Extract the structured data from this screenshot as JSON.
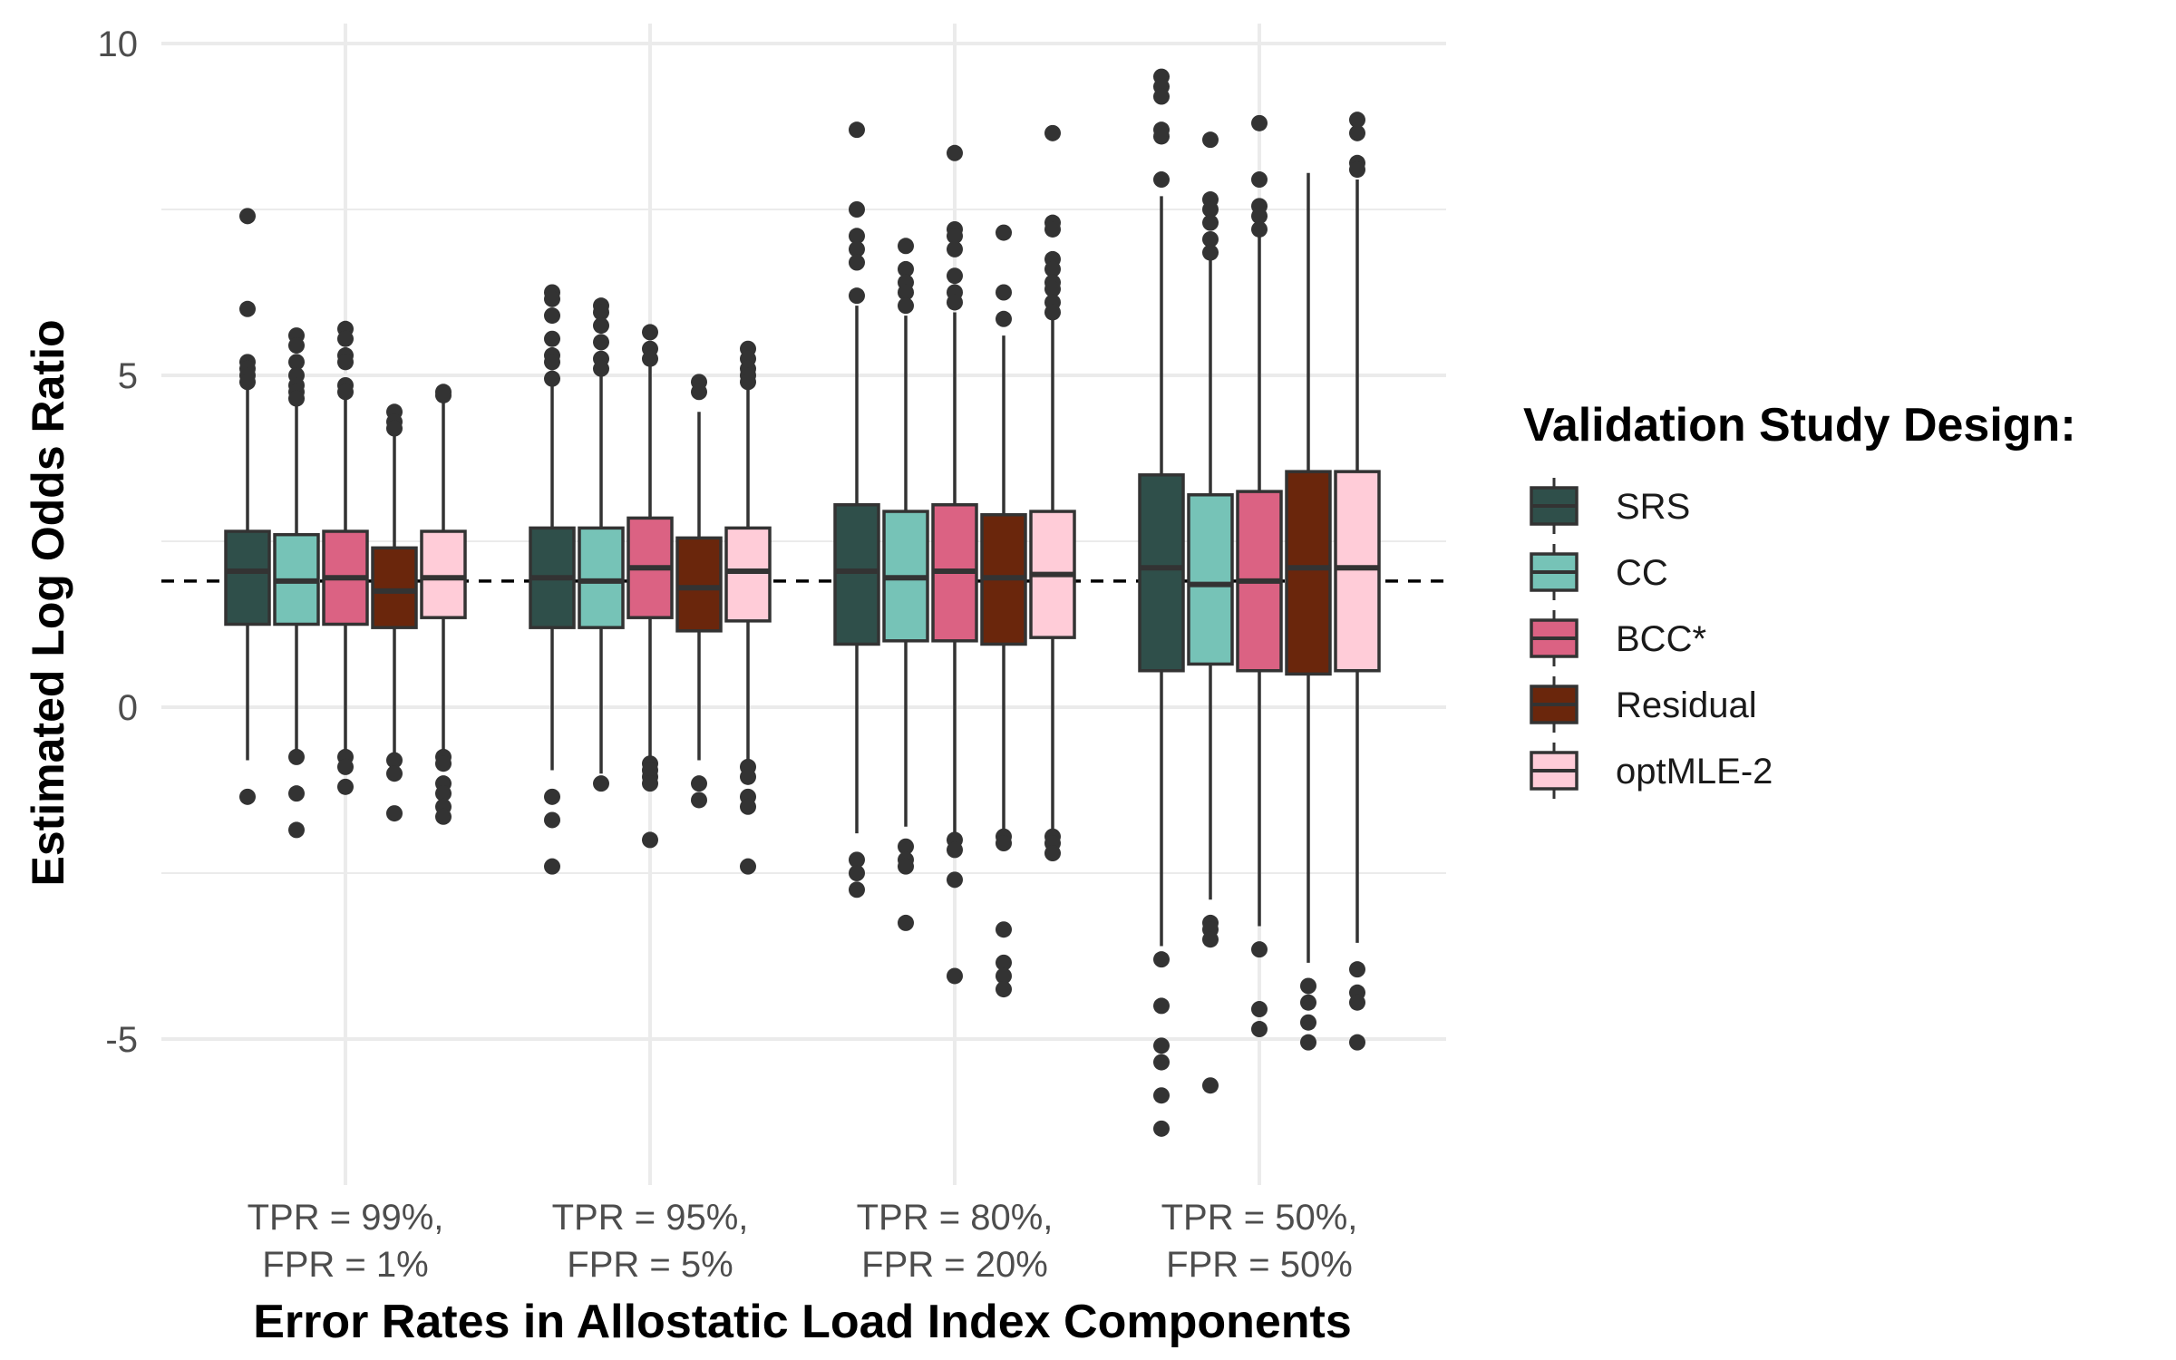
{
  "chart_data": {
    "type": "boxplot",
    "title": "",
    "xlabel": "Error Rates in Allostatic Load Index Components",
    "ylabel": "Estimated Log Odds Ratio",
    "ylim": [
      -7.2,
      10.3
    ],
    "yticks": [
      "10",
      "5",
      "0",
      "-5"
    ],
    "reference_line": 1.9,
    "grid": true,
    "legend_position": "right",
    "legend_title": "Validation Study Design:",
    "categories": [
      {
        "line1": "TPR = 99%,",
        "line2": "FPR = 1%"
      },
      {
        "line1": "TPR = 95%,",
        "line2": "FPR = 5%"
      },
      {
        "line1": "TPR = 80%,",
        "line2": "FPR = 20%"
      },
      {
        "line1": "TPR = 50%,",
        "line2": "FPR = 50%"
      }
    ],
    "series": [
      {
        "name": "SRS",
        "color": "#2f4f4a",
        "boxes": [
          {
            "lw": -0.8,
            "q1": 1.25,
            "med": 2.05,
            "q3": 2.65,
            "uw": 4.8,
            "out": [
              7.4,
              6.0,
              5.2,
              5.1,
              5.0,
              4.9,
              -1.35
            ]
          },
          {
            "lw": -0.95,
            "q1": 1.2,
            "med": 1.95,
            "q3": 2.7,
            "uw": 4.9,
            "out": [
              6.25,
              6.15,
              5.9,
              5.55,
              5.3,
              5.2,
              4.95,
              -1.35,
              -1.7,
              -2.4
            ]
          },
          {
            "lw": -1.9,
            "q1": 0.95,
            "med": 2.05,
            "q3": 3.05,
            "uw": 6.05,
            "out": [
              8.7,
              7.5,
              7.1,
              6.9,
              6.7,
              6.2,
              -2.3,
              -2.5,
              -2.75
            ]
          },
          {
            "lw": -3.6,
            "q1": 0.55,
            "med": 2.1,
            "q3": 3.5,
            "uw": 7.7,
            "out": [
              9.5,
              9.35,
              9.2,
              8.7,
              8.6,
              7.95,
              -3.8,
              -4.5,
              -5.1,
              -5.35,
              -5.85,
              -6.35
            ]
          }
        ]
      },
      {
        "name": "CC",
        "color": "#76c3b7",
        "boxes": [
          {
            "lw": -0.7,
            "q1": 1.25,
            "med": 1.9,
            "q3": 2.6,
            "uw": 4.6,
            "out": [
              5.6,
              5.45,
              5.2,
              5.0,
              4.85,
              4.75,
              4.65,
              -0.75,
              -1.3,
              -1.85
            ]
          },
          {
            "lw": -1.0,
            "q1": 1.2,
            "med": 1.9,
            "q3": 2.7,
            "uw": 5.0,
            "out": [
              6.05,
              5.95,
              5.75,
              5.5,
              5.25,
              5.1,
              -1.15
            ]
          },
          {
            "lw": -1.8,
            "q1": 1.0,
            "med": 1.95,
            "q3": 2.95,
            "uw": 5.9,
            "out": [
              6.95,
              6.6,
              6.4,
              6.25,
              6.05,
              -2.1,
              -2.3,
              -2.4,
              -3.25
            ]
          },
          {
            "lw": -2.9,
            "q1": 0.65,
            "med": 1.85,
            "q3": 3.2,
            "uw": 6.8,
            "out": [
              8.55,
              7.65,
              7.5,
              7.3,
              7.05,
              6.85,
              -3.25,
              -3.35,
              -3.5,
              -5.7
            ]
          }
        ]
      },
      {
        "name": "BCC*",
        "color": "#db6283",
        "boxes": [
          {
            "lw": -0.7,
            "q1": 1.25,
            "med": 1.95,
            "q3": 2.65,
            "uw": 4.75,
            "out": [
              5.7,
              5.55,
              5.3,
              5.2,
              4.85,
              4.75,
              -0.75,
              -0.9,
              -1.2
            ]
          },
          {
            "lw": -0.85,
            "q1": 1.35,
            "med": 2.1,
            "q3": 2.85,
            "uw": 5.15,
            "out": [
              5.65,
              5.4,
              5.25,
              -0.85,
              -0.95,
              -1.05,
              -1.15,
              -2.0
            ]
          },
          {
            "lw": -1.95,
            "q1": 1.0,
            "med": 2.05,
            "q3": 3.05,
            "uw": 5.95,
            "out": [
              8.35,
              7.2,
              7.1,
              6.9,
              6.5,
              6.25,
              6.1,
              -2.0,
              -2.15,
              -2.6,
              -4.05
            ]
          },
          {
            "lw": -3.3,
            "q1": 0.55,
            "med": 1.9,
            "q3": 3.25,
            "uw": 7.1,
            "out": [
              8.8,
              7.95,
              7.55,
              7.4,
              7.2,
              -3.65,
              -4.55,
              -4.85
            ]
          }
        ]
      },
      {
        "name": "Residual",
        "color": "#6a260c",
        "boxes": [
          {
            "lw": -0.7,
            "q1": 1.2,
            "med": 1.75,
            "q3": 2.4,
            "uw": 4.15,
            "out": [
              4.45,
              4.3,
              4.2,
              -0.8,
              -1.0,
              -1.6
            ]
          },
          {
            "lw": -0.8,
            "q1": 1.15,
            "med": 1.8,
            "q3": 2.55,
            "uw": 4.45,
            "out": [
              4.9,
              4.75,
              -1.15,
              -1.4
            ]
          },
          {
            "lw": -1.9,
            "q1": 0.95,
            "med": 1.95,
            "q3": 2.9,
            "uw": 5.6,
            "out": [
              7.15,
              6.25,
              5.85,
              -1.95,
              -2.05,
              -3.35,
              -3.85,
              -4.05,
              -4.25
            ]
          },
          {
            "lw": -3.85,
            "q1": 0.5,
            "med": 2.1,
            "q3": 3.55,
            "uw": 8.05,
            "out": [
              -4.2,
              -4.45,
              -4.75,
              -5.05
            ]
          }
        ]
      },
      {
        "name": "optMLE-2",
        "color": "#ffccd8",
        "boxes": [
          {
            "lw": -0.7,
            "q1": 1.35,
            "med": 1.95,
            "q3": 2.65,
            "uw": 4.6,
            "out": [
              4.75,
              4.7,
              -0.75,
              -0.85,
              -1.15,
              -1.3,
              -1.5,
              -1.65
            ]
          },
          {
            "lw": -0.85,
            "q1": 1.3,
            "med": 2.05,
            "q3": 2.7,
            "uw": 4.85,
            "out": [
              5.4,
              5.25,
              5.1,
              5.0,
              4.9,
              -0.9,
              -1.05,
              -1.35,
              -1.5,
              -2.4
            ]
          },
          {
            "lw": -1.9,
            "q1": 1.05,
            "med": 2.0,
            "q3": 2.95,
            "uw": 5.9,
            "out": [
              8.65,
              7.3,
              7.2,
              6.75,
              6.6,
              6.4,
              6.3,
              6.1,
              5.95,
              -1.95,
              -2.05,
              -2.2
            ]
          },
          {
            "lw": -3.55,
            "q1": 0.55,
            "med": 2.1,
            "q3": 3.55,
            "uw": 7.95,
            "out": [
              8.85,
              8.65,
              8.2,
              8.1,
              -3.95,
              -4.3,
              -4.45,
              -5.05
            ]
          }
        ]
      }
    ]
  }
}
